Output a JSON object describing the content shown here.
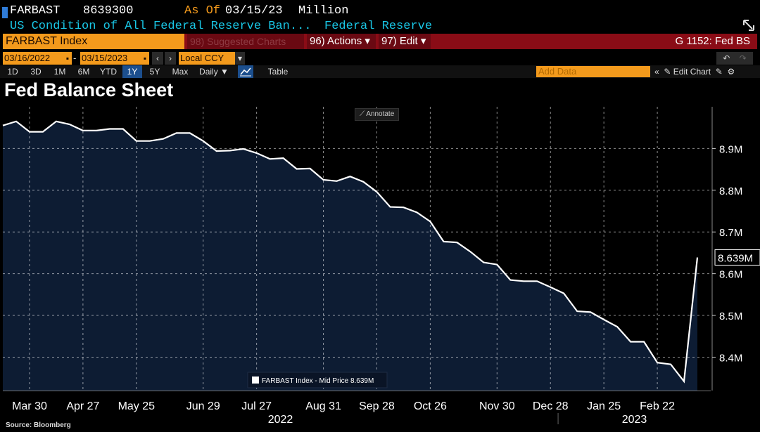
{
  "header": {
    "ticker": "FARBAST",
    "value": "8639300",
    "asof_label": "As Of",
    "asof_date": "03/15/23",
    "unit": "Million",
    "description": "US Condition of All Federal Reserve Ban...",
    "source_name": "Federal Reserve"
  },
  "toolbar": {
    "index_label": "FARBAST Index",
    "suggested_label": "98) Suggested Charts",
    "actions_label": "96) Actions ▾",
    "edit_label": "97) Edit ▾",
    "page_label": "G 1152: Fed BS",
    "start_date": "03/16/2022",
    "end_date": "03/15/2023",
    "currency": "Local CCY",
    "periods": [
      "1D",
      "3D",
      "1M",
      "6M",
      "YTD",
      "1Y",
      "5Y",
      "Max"
    ],
    "active_period": "1Y",
    "frequency": "Daily ▼",
    "table_label": "Table",
    "add_data_placeholder": "Add Data",
    "edit_chart_label": "Edit Chart"
  },
  "colors": {
    "accent_orange": "#f39a1c",
    "bar_red": "#8a0c16",
    "cyan_text": "#19c7e6",
    "area_fill": "#0d1c33",
    "line": "#ffffff"
  },
  "icons": [
    "expand-icon",
    "calendar-icon",
    "chevron-left-icon",
    "chevron-right-icon",
    "dropdown-icon",
    "undo-icon",
    "redo-icon",
    "line-chart-icon",
    "double-chevron-left-icon",
    "pencil-icon",
    "edit-icon",
    "settings-icon",
    "annotate-icon"
  ],
  "annotate_label": "Annotate",
  "source_label": "Source: Bloomberg",
  "chart_data": {
    "type": "area",
    "title": "Fed Balance Sheet",
    "series": [
      {
        "name": "FARBAST Index - Mid Price 8.639M",
        "values": [
          [
            "2022-03-16",
            8.955
          ],
          [
            "2022-03-23",
            8.965
          ],
          [
            "2022-03-30",
            8.94
          ],
          [
            "2022-04-06",
            8.94
          ],
          [
            "2022-04-13",
            8.965
          ],
          [
            "2022-04-20",
            8.958
          ],
          [
            "2022-04-27",
            8.943
          ],
          [
            "2022-05-04",
            8.943
          ],
          [
            "2022-05-11",
            8.947
          ],
          [
            "2022-05-18",
            8.947
          ],
          [
            "2022-05-25",
            8.918
          ],
          [
            "2022-06-01",
            8.918
          ],
          [
            "2022-06-08",
            8.923
          ],
          [
            "2022-06-15",
            8.937
          ],
          [
            "2022-06-22",
            8.937
          ],
          [
            "2022-06-29",
            8.918
          ],
          [
            "2022-07-06",
            8.894
          ],
          [
            "2022-07-13",
            8.895
          ],
          [
            "2022-07-20",
            8.899
          ],
          [
            "2022-07-27",
            8.889
          ],
          [
            "2022-08-03",
            8.875
          ],
          [
            "2022-08-10",
            8.877
          ],
          [
            "2022-08-17",
            8.851
          ],
          [
            "2022-08-24",
            8.852
          ],
          [
            "2022-08-31",
            8.825
          ],
          [
            "2022-09-07",
            8.822
          ],
          [
            "2022-09-14",
            8.833
          ],
          [
            "2022-09-21",
            8.82
          ],
          [
            "2022-09-28",
            8.796
          ],
          [
            "2022-10-05",
            8.76
          ],
          [
            "2022-10-12",
            8.759
          ],
          [
            "2022-10-19",
            8.747
          ],
          [
            "2022-10-26",
            8.725
          ],
          [
            "2022-11-02",
            8.677
          ],
          [
            "2022-11-09",
            8.675
          ],
          [
            "2022-11-16",
            8.653
          ],
          [
            "2022-11-23",
            8.627
          ],
          [
            "2022-11-30",
            8.622
          ],
          [
            "2022-12-07",
            8.585
          ],
          [
            "2022-12-14",
            8.582
          ],
          [
            "2022-12-21",
            8.582
          ],
          [
            "2022-12-28",
            8.568
          ],
          [
            "2023-01-04",
            8.553
          ],
          [
            "2023-01-11",
            8.51
          ],
          [
            "2023-01-18",
            8.508
          ],
          [
            "2023-01-25",
            8.49
          ],
          [
            "2023-02-01",
            8.473
          ],
          [
            "2023-02-08",
            8.437
          ],
          [
            "2023-02-15",
            8.437
          ],
          [
            "2023-02-22",
            8.387
          ],
          [
            "2023-03-01",
            8.383
          ],
          [
            "2023-03-08",
            8.342
          ],
          [
            "2023-03-15",
            8.639
          ]
        ]
      }
    ],
    "last_value_label": "8.639M",
    "legend": "FARBAST Index - Mid Price 8.639M",
    "legend_position": "bottom-center",
    "ylim": [
      8.32,
      9.0
    ],
    "y_ticks": [
      8.4,
      8.5,
      8.6,
      8.7,
      8.8,
      8.9
    ],
    "y_tick_labels": [
      "8.4M",
      "8.5M",
      "8.6M",
      "8.7M",
      "8.8M",
      "8.9M"
    ],
    "x_ticks": [
      "2022-03-30",
      "2022-04-27",
      "2022-05-25",
      "2022-06-29",
      "2022-07-27",
      "2022-08-31",
      "2022-09-28",
      "2022-10-26",
      "2022-11-30",
      "2022-12-28",
      "2023-01-25",
      "2023-02-22"
    ],
    "x_tick_labels": [
      "Mar 30",
      "Apr 27",
      "May 25",
      "Jun 29",
      "Jul 27",
      "Aug 31",
      "Sep 28",
      "Oct 26",
      "Nov 30",
      "Dec 28",
      "Jan 25",
      "Feb 22"
    ],
    "year_labels": [
      "2022",
      "2023"
    ],
    "grid": true,
    "xlim": [
      "2022-03-16",
      "2023-03-22"
    ]
  }
}
